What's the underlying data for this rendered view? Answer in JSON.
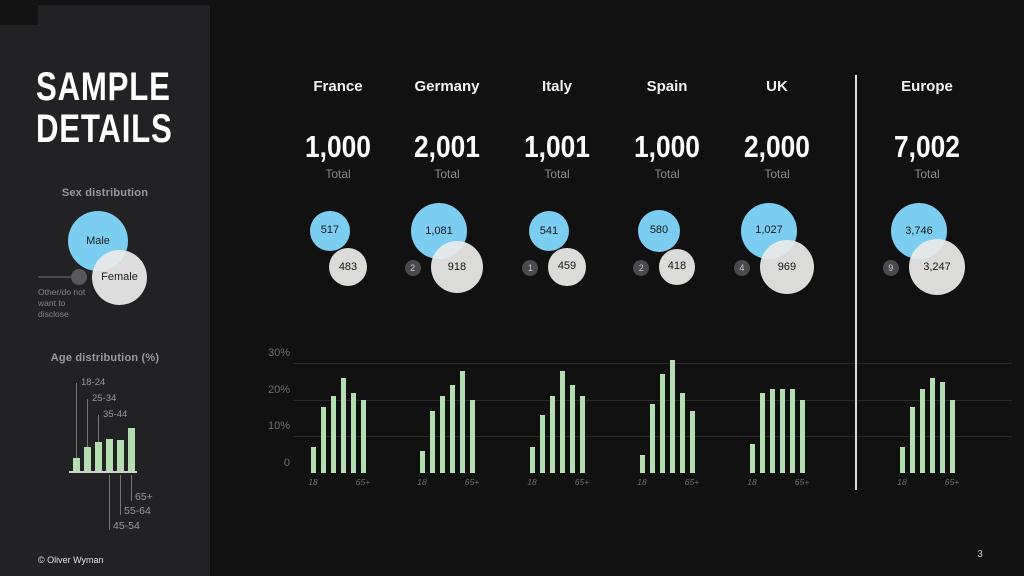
{
  "slide": {
    "title_line1": "SAMPLE",
    "title_line2": "DETAILS",
    "footer_copyright": "© Oliver Wyman",
    "page_number": "3"
  },
  "labels": {
    "total": "Total"
  },
  "legend": {
    "sex": {
      "heading": "Sex distribution",
      "male_label": "Male",
      "female_label": "Female",
      "other_label": "Other/do not want to disclose"
    },
    "age": {
      "heading": "Age distribution (%)",
      "mini_bar_heights": [
        14,
        25,
        30,
        33,
        32,
        44
      ]
    }
  },
  "colors": {
    "male_bubble": "#7CCDF2",
    "female_bubble": "#ECECEC",
    "age_bars": "#B5DDB2",
    "other_badge": "#4A4A4E",
    "sidebar_bg": "#222224",
    "main_bg": "#111112"
  },
  "columns": [
    {
      "name": "France",
      "total": "1,000",
      "male": "517",
      "female": "483",
      "other": null
    },
    {
      "name": "Germany",
      "total": "2,001",
      "male": "1,081",
      "female": "918",
      "other": "2"
    },
    {
      "name": "Italy",
      "total": "1,001",
      "male": "541",
      "female": "459",
      "other": "1"
    },
    {
      "name": "Spain",
      "total": "1,000",
      "male": "580",
      "female": "418",
      "other": "2"
    },
    {
      "name": "UK",
      "total": "2,000",
      "male": "1,027",
      "female": "969",
      "other": "4"
    },
    {
      "name": "Europe",
      "total": "7,002",
      "male": "3,746",
      "female": "3,247",
      "other": "9"
    }
  ],
  "chart_data": [
    {
      "type": "bubble",
      "title": "Sex distribution by country (sample counts)",
      "categories": [
        "France",
        "Germany",
        "Italy",
        "Spain",
        "UK",
        "Europe"
      ],
      "series": [
        {
          "name": "Male",
          "values": [
            517,
            1081,
            541,
            580,
            1027,
            3746
          ]
        },
        {
          "name": "Female",
          "values": [
            483,
            918,
            459,
            418,
            969,
            3247
          ]
        },
        {
          "name": "Other/do not want to disclose",
          "values": [
            0,
            2,
            1,
            2,
            4,
            9
          ]
        }
      ],
      "totals": [
        1000,
        2001,
        1001,
        1000,
        2000,
        7002
      ]
    },
    {
      "type": "bar",
      "title": "Age distribution (%)",
      "categories": [
        "18-24",
        "25-34",
        "35-44",
        "45-54",
        "55-64",
        "65+"
      ],
      "series": [
        {
          "name": "France",
          "values": [
            7,
            18,
            21,
            26,
            22,
            20
          ]
        },
        {
          "name": "Germany",
          "values": [
            6,
            17,
            21,
            24,
            28,
            20
          ]
        },
        {
          "name": "Italy",
          "values": [
            7,
            16,
            21,
            28,
            24,
            21
          ]
        },
        {
          "name": "Spain",
          "values": [
            5,
            19,
            27,
            31,
            22,
            17
          ]
        },
        {
          "name": "UK",
          "values": [
            8,
            22,
            23,
            23,
            23,
            20
          ]
        },
        {
          "name": "Europe",
          "values": [
            7,
            18,
            23,
            26,
            25,
            20
          ]
        }
      ],
      "ylim": [
        0,
        30
      ],
      "y_ticks": [
        "0",
        "10%",
        "20%",
        "30%"
      ],
      "x_tick_labels_shown": [
        "18",
        "65+"
      ],
      "grid": true,
      "legend_position": "sidebar-left"
    }
  ]
}
